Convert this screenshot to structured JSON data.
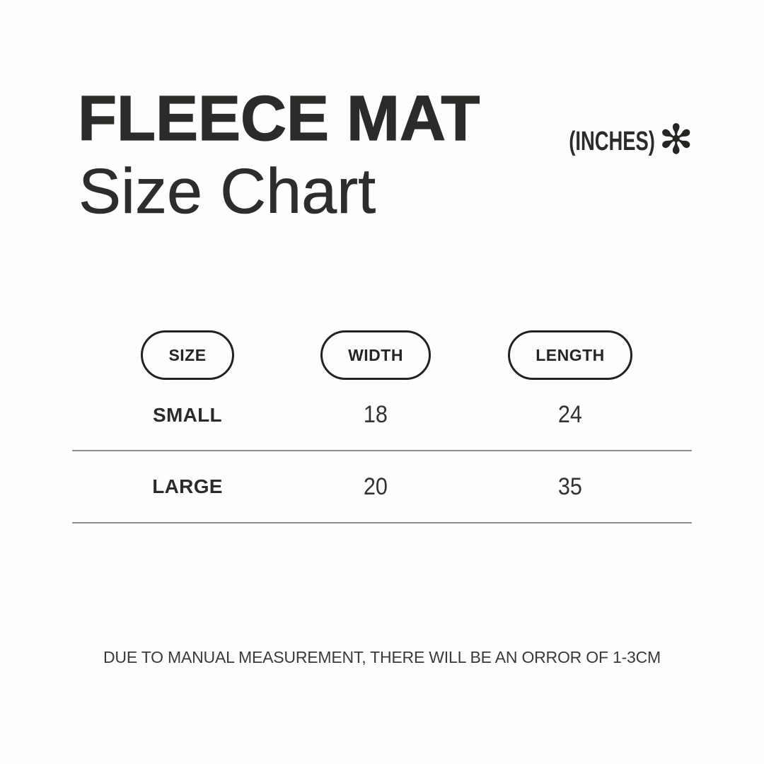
{
  "title": {
    "line1": "FLEECE MAT",
    "line2": "Size Chart"
  },
  "unit": {
    "label": "(INCHES)",
    "asterisk": "✻"
  },
  "size_table": {
    "columns": [
      "SIZE",
      "WIDTH",
      "LENGTH"
    ],
    "rows": [
      [
        "SMALL",
        "18",
        "24"
      ],
      [
        "LARGE",
        "20",
        "35"
      ]
    ]
  },
  "footer": {
    "note": "DUE TO MANUAL MEASUREMENT, THERE WILL BE AN ORROR OF 1-3CM"
  },
  "colors": {
    "background": "#fdfdfd",
    "text": "#2c2b29",
    "pill_border": "#222222",
    "divider": "#8f8f8f"
  },
  "chart_data": {
    "type": "table",
    "title": "FLEECE MAT Size Chart",
    "unit": "inches",
    "columns": [
      "SIZE",
      "WIDTH",
      "LENGTH"
    ],
    "rows": [
      {
        "size": "SMALL",
        "width": 18,
        "length": 24
      },
      {
        "size": "LARGE",
        "width": 20,
        "length": 35
      }
    ],
    "note": "DUE TO MANUAL MEASUREMENT, THERE WILL BE AN ORROR OF 1-3CM"
  }
}
